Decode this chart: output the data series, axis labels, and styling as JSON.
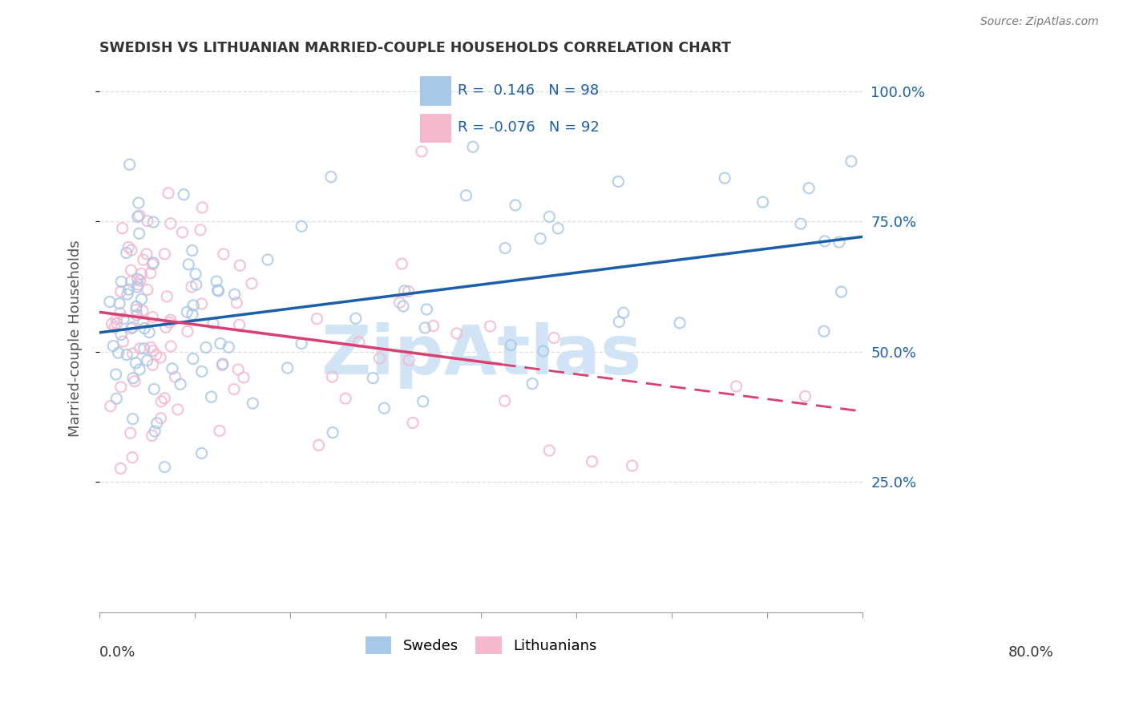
{
  "title": "SWEDISH VS LITHUANIAN MARRIED-COUPLE HOUSEHOLDS CORRELATION CHART",
  "source": "Source: ZipAtlas.com",
  "ylabel": "Married-couple Households",
  "ytick_labels": [
    "25.0%",
    "50.0%",
    "75.0%",
    "100.0%"
  ],
  "ytick_positions": [
    0.25,
    0.5,
    0.75,
    1.0
  ],
  "xlim": [
    0.0,
    0.8
  ],
  "ylim": [
    0.0,
    1.05
  ],
  "legend_r_blue": "0.146",
  "legend_n_blue": "98",
  "legend_r_pink": "-0.076",
  "legend_n_pink": "92",
  "blue_scatter_color": "#a8c8e8",
  "pink_scatter_color": "#f5b8cc",
  "line_blue_color": "#1a5fa8",
  "line_pink_color": "#d94070",
  "legend_label_blue": "Swedes",
  "legend_label_pink": "Lithuanians",
  "watermark_color": "#d0e4f5",
  "grid_color": "#dddddd",
  "title_color": "#333333",
  "axis_label_color": "#555555",
  "right_tick_color": "#1a5fa8",
  "bottom_tick_color": "#333333"
}
